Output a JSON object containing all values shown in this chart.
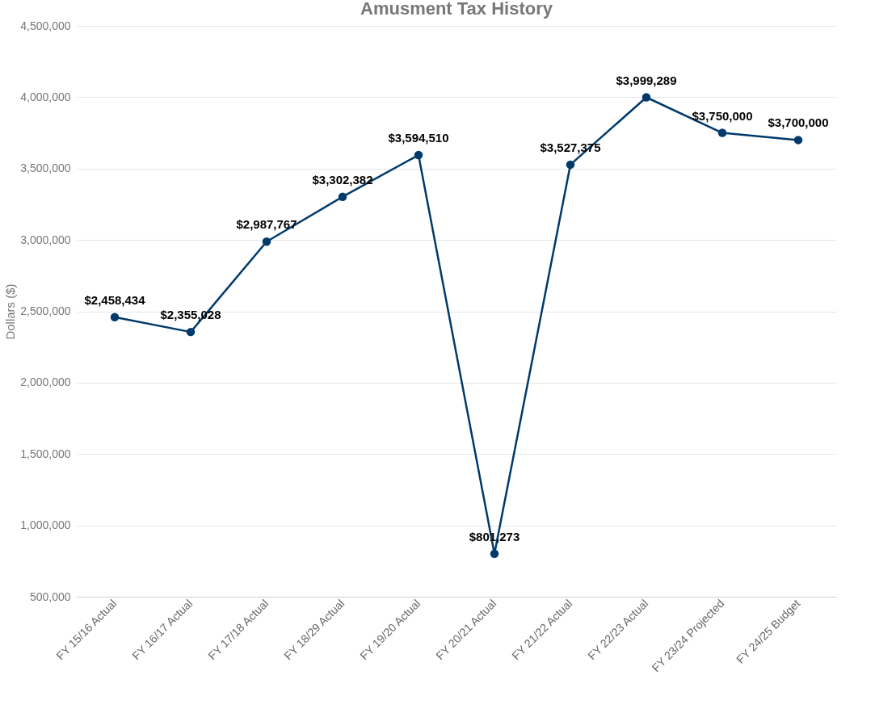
{
  "chart_data": {
    "type": "line",
    "title": "Amusment Tax History",
    "ylabel": "Dollars ($)",
    "categories": [
      "FY 15/16 Actual",
      "FY 16/17 Actual",
      "FY 17/18 Actual",
      "FY 18/29 Actual",
      "FY 19/20 Actual",
      "FY 20/21 Actual",
      "FY 21/22 Actual",
      "FY 22/23 Actual",
      "FY 23/24 Projected",
      "FY 24/25 Budget"
    ],
    "series": [
      {
        "color": "#003a6b",
        "values": [
          2458434,
          2355028,
          2987767,
          3302382,
          3594510,
          801273,
          3527375,
          3999289,
          3750000,
          3700000
        ],
        "value_labels": [
          "$2,458,434",
          "$2,355,028",
          "$2,987,767",
          "$3,302,382",
          "$3,594,510",
          "$801,273",
          "$3,527,375",
          "$3,999,289",
          "$3,750,000",
          "$3,700,000"
        ]
      }
    ],
    "ylim": [
      500000,
      4500000
    ],
    "yticks": [
      {
        "value": 500000,
        "label": "500,000"
      },
      {
        "value": 1000000,
        "label": "1,000,000"
      },
      {
        "value": 1500000,
        "label": "1,500,000"
      },
      {
        "value": 2000000,
        "label": "2,000,000"
      },
      {
        "value": 2500000,
        "label": "2,500,000"
      },
      {
        "value": 3000000,
        "label": "3,000,000"
      },
      {
        "value": 3500000,
        "label": "3,500,000"
      },
      {
        "value": 4000000,
        "label": "4,000,000"
      },
      {
        "value": 4500000,
        "label": "4,500,000"
      }
    ],
    "grid": "y",
    "marker": "circle",
    "line_style": "solid"
  }
}
